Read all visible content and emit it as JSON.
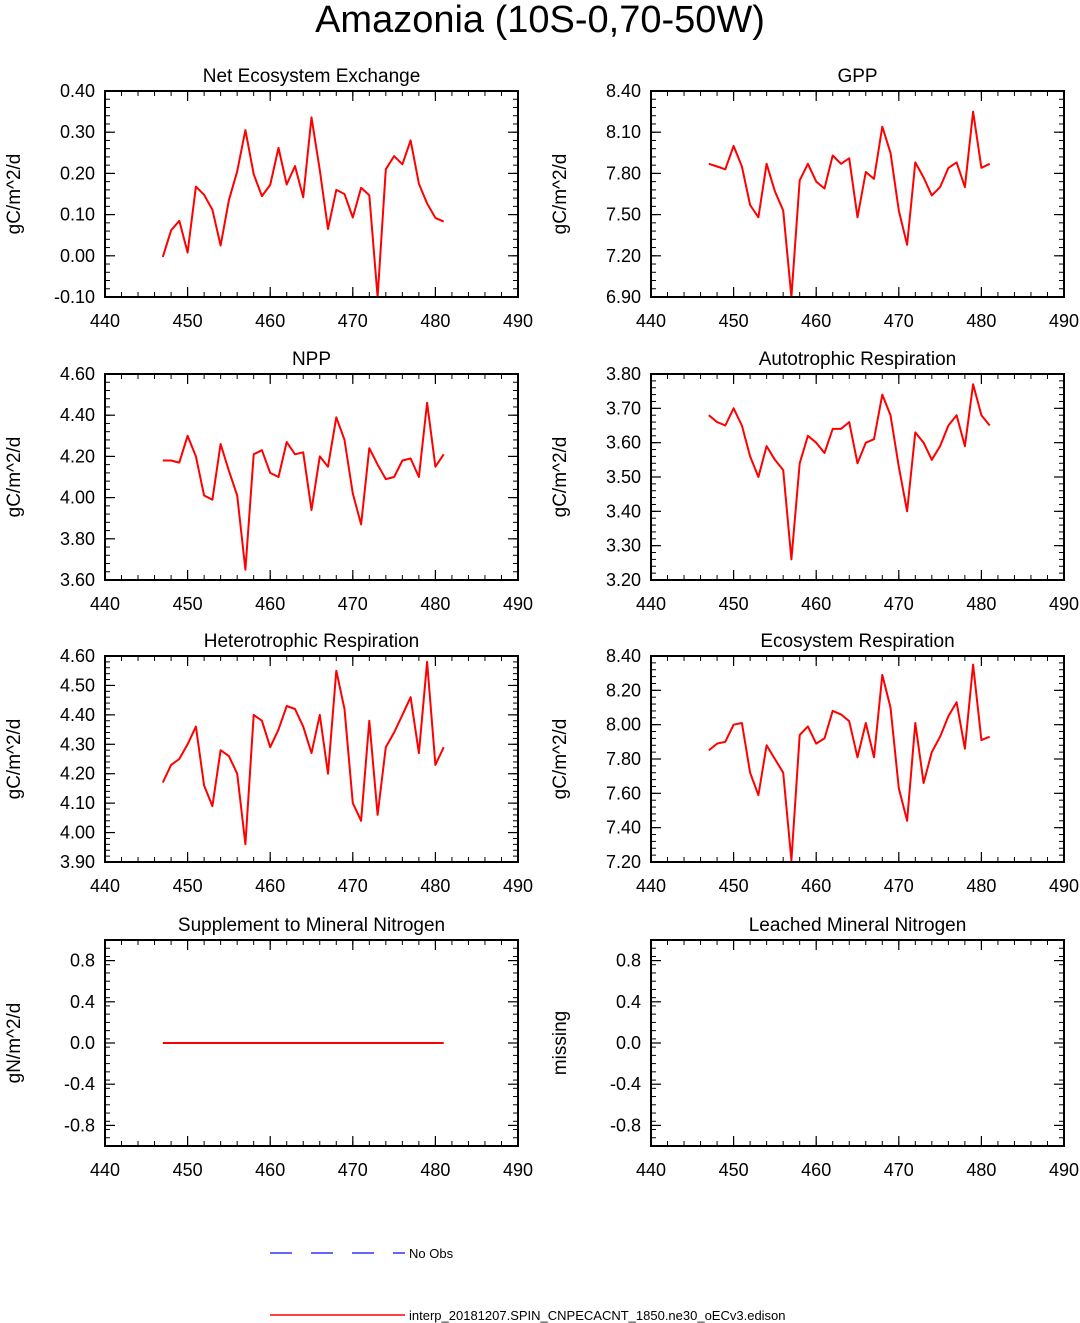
{
  "figure_title": "Amazonia (10S-0,70-50W)",
  "legend": {
    "obs_label": "No Obs",
    "obs_color": "#3333ff",
    "model_label": "interp_20181207.SPIN_CNPECACNT_1850.ne30_oECv3.edison",
    "model_color": "#ff0000"
  },
  "chart_data": [
    {
      "type": "line",
      "title": "Net Ecosystem Exchange",
      "ylabel": "gC/m^2/d",
      "xlim": [
        440,
        490
      ],
      "xticks": [
        "440",
        "450",
        "460",
        "470",
        "480",
        "490"
      ],
      "ylim": [
        -0.1,
        0.4
      ],
      "yticks": [
        "-0.10",
        "0.00",
        "0.10",
        "0.20",
        "0.30",
        "0.40"
      ],
      "x": [
        447,
        448,
        449,
        450,
        451,
        452,
        453,
        454,
        455,
        456,
        457,
        458,
        459,
        460,
        461,
        462,
        463,
        464,
        465,
        466,
        467,
        468,
        469,
        470,
        471,
        472,
        473,
        474,
        475,
        476,
        477,
        478,
        479,
        480,
        481
      ],
      "values": [
        -0.003,
        0.062,
        0.085,
        0.008,
        0.168,
        0.148,
        0.112,
        0.025,
        0.135,
        0.205,
        0.305,
        0.198,
        0.145,
        0.172,
        0.262,
        0.173,
        0.218,
        0.142,
        0.336,
        0.208,
        0.065,
        0.16,
        0.15,
        0.093,
        0.165,
        0.147,
        -0.1,
        0.21,
        0.242,
        0.222,
        0.28,
        0.175,
        0.127,
        0.092,
        0.083
      ]
    },
    {
      "type": "line",
      "title": "GPP",
      "ylabel": "gC/m^2/d",
      "xlim": [
        440,
        490
      ],
      "xticks": [
        "440",
        "450",
        "460",
        "470",
        "480",
        "490"
      ],
      "ylim": [
        6.9,
        8.4
      ],
      "yticks": [
        "6.90",
        "7.20",
        "7.50",
        "7.80",
        "8.10",
        "8.40"
      ],
      "x": [
        447,
        448,
        449,
        450,
        451,
        452,
        453,
        454,
        455,
        456,
        457,
        458,
        459,
        460,
        461,
        462,
        463,
        464,
        465,
        466,
        467,
        468,
        469,
        470,
        471,
        472,
        473,
        474,
        475,
        476,
        477,
        478,
        479,
        480,
        481
      ],
      "values": [
        7.87,
        7.85,
        7.83,
        8.0,
        7.85,
        7.57,
        7.48,
        7.87,
        7.67,
        7.53,
        6.9,
        7.75,
        7.87,
        7.74,
        7.69,
        7.93,
        7.87,
        7.91,
        7.48,
        7.81,
        7.76,
        8.14,
        7.95,
        7.53,
        7.28,
        7.88,
        7.77,
        7.64,
        7.7,
        7.84,
        7.88,
        7.7,
        8.25,
        7.84,
        7.87
      ]
    },
    {
      "type": "line",
      "title": "NPP",
      "ylabel": "gC/m^2/d",
      "xlim": [
        440,
        490
      ],
      "xticks": [
        "440",
        "450",
        "460",
        "470",
        "480",
        "490"
      ],
      "ylim": [
        3.6,
        4.6
      ],
      "yticks": [
        "3.60",
        "3.80",
        "4.00",
        "4.20",
        "4.40",
        "4.60"
      ],
      "x": [
        447,
        448,
        449,
        450,
        451,
        452,
        453,
        454,
        455,
        456,
        457,
        458,
        459,
        460,
        461,
        462,
        463,
        464,
        465,
        466,
        467,
        468,
        469,
        470,
        471,
        472,
        473,
        474,
        475,
        476,
        477,
        478,
        479,
        480,
        481
      ],
      "values": [
        4.18,
        4.18,
        4.17,
        4.3,
        4.2,
        4.01,
        3.99,
        4.26,
        4.13,
        4.01,
        3.65,
        4.21,
        4.23,
        4.12,
        4.1,
        4.27,
        4.21,
        4.22,
        3.94,
        4.2,
        4.15,
        4.39,
        4.28,
        4.02,
        3.87,
        4.24,
        4.16,
        4.09,
        4.1,
        4.18,
        4.19,
        4.1,
        4.46,
        4.15,
        4.21
      ]
    },
    {
      "type": "line",
      "title": "Autotrophic Respiration",
      "ylabel": "gC/m^2/d",
      "xlim": [
        440,
        490
      ],
      "xticks": [
        "440",
        "450",
        "460",
        "470",
        "480",
        "490"
      ],
      "ylim": [
        3.2,
        3.8
      ],
      "yticks": [
        "3.20",
        "3.30",
        "3.40",
        "3.50",
        "3.60",
        "3.70",
        "3.80"
      ],
      "x": [
        447,
        448,
        449,
        450,
        451,
        452,
        453,
        454,
        455,
        456,
        457,
        458,
        459,
        460,
        461,
        462,
        463,
        464,
        465,
        466,
        467,
        468,
        469,
        470,
        471,
        472,
        473,
        474,
        475,
        476,
        477,
        478,
        479,
        480,
        481
      ],
      "values": [
        3.68,
        3.66,
        3.65,
        3.7,
        3.65,
        3.56,
        3.5,
        3.59,
        3.55,
        3.52,
        3.26,
        3.54,
        3.62,
        3.6,
        3.57,
        3.64,
        3.64,
        3.66,
        3.54,
        3.6,
        3.61,
        3.74,
        3.68,
        3.53,
        3.4,
        3.63,
        3.6,
        3.55,
        3.59,
        3.65,
        3.68,
        3.59,
        3.77,
        3.68,
        3.65
      ]
    },
    {
      "type": "line",
      "title": "Heterotrophic Respiration",
      "ylabel": "gC/m^2/d",
      "xlim": [
        440,
        490
      ],
      "xticks": [
        "440",
        "450",
        "460",
        "470",
        "480",
        "490"
      ],
      "ylim": [
        3.9,
        4.6
      ],
      "yticks": [
        "3.90",
        "4.00",
        "4.10",
        "4.20",
        "4.30",
        "4.40",
        "4.50",
        "4.60"
      ],
      "x": [
        447,
        448,
        449,
        450,
        451,
        452,
        453,
        454,
        455,
        456,
        457,
        458,
        459,
        460,
        461,
        462,
        463,
        464,
        465,
        466,
        467,
        468,
        469,
        470,
        471,
        472,
        473,
        474,
        475,
        476,
        477,
        478,
        479,
        480,
        481
      ],
      "values": [
        4.17,
        4.23,
        4.25,
        4.3,
        4.36,
        4.16,
        4.09,
        4.28,
        4.26,
        4.2,
        3.96,
        4.4,
        4.38,
        4.29,
        4.35,
        4.43,
        4.42,
        4.36,
        4.27,
        4.4,
        4.2,
        4.55,
        4.42,
        4.1,
        4.04,
        4.38,
        4.06,
        4.29,
        4.34,
        4.4,
        4.46,
        4.27,
        4.58,
        4.23,
        4.29
      ]
    },
    {
      "type": "line",
      "title": "Ecosystem Respiration",
      "ylabel": "gC/m^2/d",
      "xlim": [
        440,
        490
      ],
      "xticks": [
        "440",
        "450",
        "460",
        "470",
        "480",
        "490"
      ],
      "ylim": [
        7.2,
        8.4
      ],
      "yticks": [
        "7.20",
        "7.40",
        "7.60",
        "7.80",
        "8.00",
        "8.20",
        "8.40"
      ],
      "x": [
        447,
        448,
        449,
        450,
        451,
        452,
        453,
        454,
        455,
        456,
        457,
        458,
        459,
        460,
        461,
        462,
        463,
        464,
        465,
        466,
        467,
        468,
        469,
        470,
        471,
        472,
        473,
        474,
        475,
        476,
        477,
        478,
        479,
        480,
        481
      ],
      "values": [
        7.85,
        7.89,
        7.9,
        8.0,
        8.01,
        7.72,
        7.59,
        7.88,
        7.8,
        7.72,
        7.21,
        7.94,
        7.99,
        7.89,
        7.92,
        8.08,
        8.06,
        8.02,
        7.81,
        8.01,
        7.81,
        8.29,
        8.1,
        7.63,
        7.44,
        8.01,
        7.66,
        7.84,
        7.93,
        8.05,
        8.13,
        7.86,
        8.35,
        7.91,
        7.93
      ]
    },
    {
      "type": "line",
      "title": "Supplement to Mineral Nitrogen",
      "ylabel": "gN/m^2/d",
      "xlim": [
        440,
        490
      ],
      "xticks": [
        "440",
        "450",
        "460",
        "470",
        "480",
        "490"
      ],
      "ylim": [
        -1.0,
        1.0
      ],
      "yticks": [
        "-0.8",
        "-0.4",
        "0.0",
        "0.4",
        "0.8"
      ],
      "ytick_values": [
        -0.8,
        -0.4,
        0.0,
        0.4,
        0.8
      ],
      "x": [
        447,
        481
      ],
      "values": [
        0.0,
        0.0
      ]
    },
    {
      "type": "line",
      "title": "Leached Mineral Nitrogen",
      "ylabel": "missing",
      "xlim": [
        440,
        490
      ],
      "xticks": [
        "440",
        "450",
        "460",
        "470",
        "480",
        "490"
      ],
      "ylim": [
        -1.0,
        1.0
      ],
      "yticks": [
        "-0.8",
        "-0.4",
        "0.0",
        "0.4",
        "0.8"
      ],
      "ytick_values": [
        -0.8,
        -0.4,
        0.0,
        0.4,
        0.8
      ],
      "x": [],
      "values": []
    }
  ]
}
